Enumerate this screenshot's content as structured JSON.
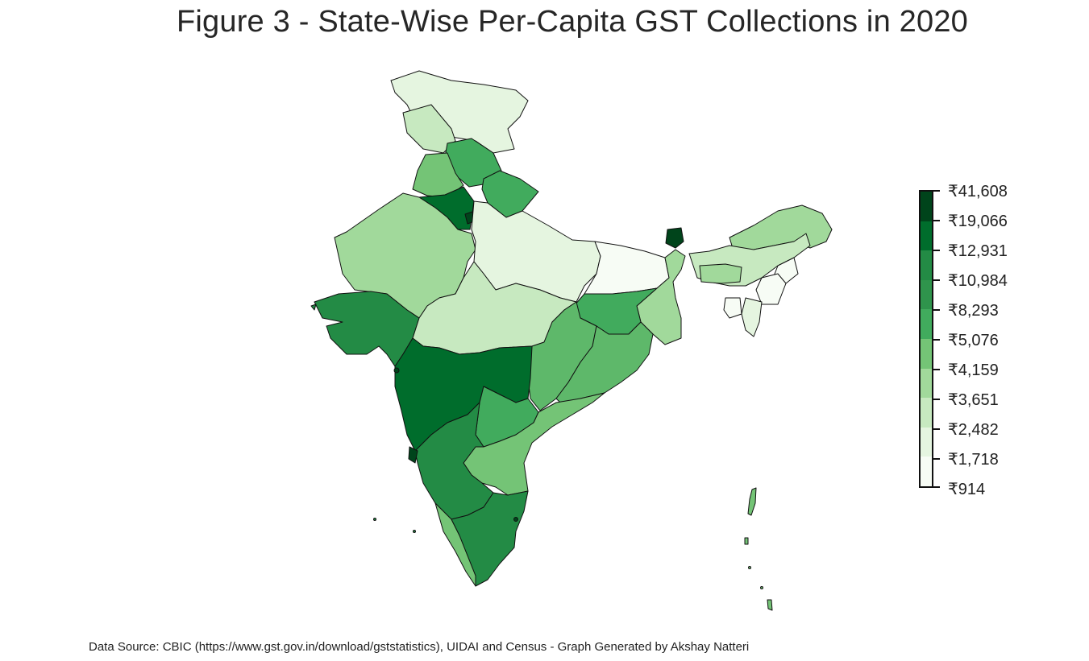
{
  "title": "Figure 3 - State-Wise Per-Capita GST Collections in 2020",
  "source": "Data Source: CBIC (https://www.gst.gov.in/download/gststatistics), UIDAI and Census - Graph Generated by Akshay Natteri",
  "legend": {
    "ticks": [
      "₹41,608",
      "₹19,066",
      "₹12,931",
      "₹10,984",
      "₹8,293",
      "₹5,076",
      "₹4,159",
      "₹3,651",
      "₹2,482",
      "₹1,718",
      "₹914"
    ],
    "colors": [
      "#00441b",
      "#006d2c",
      "#238b45",
      "#2f944c",
      "#41ab5d",
      "#5eb86a",
      "#74c476",
      "#a1d99b",
      "#c7e9c0",
      "#e5f5e0",
      "#f7fcf5"
    ]
  },
  "chart_data": {
    "type": "choropleth",
    "title": "Figure 3 - State-Wise Per-Capita GST Collections in 2020",
    "scale": [
      "₹914",
      "₹1,718",
      "₹2,482",
      "₹3,651",
      "₹4,159",
      "₹5,076",
      "₹8,293",
      "₹10,984",
      "₹12,931",
      "₹19,066",
      "₹41,608"
    ]
  }
}
